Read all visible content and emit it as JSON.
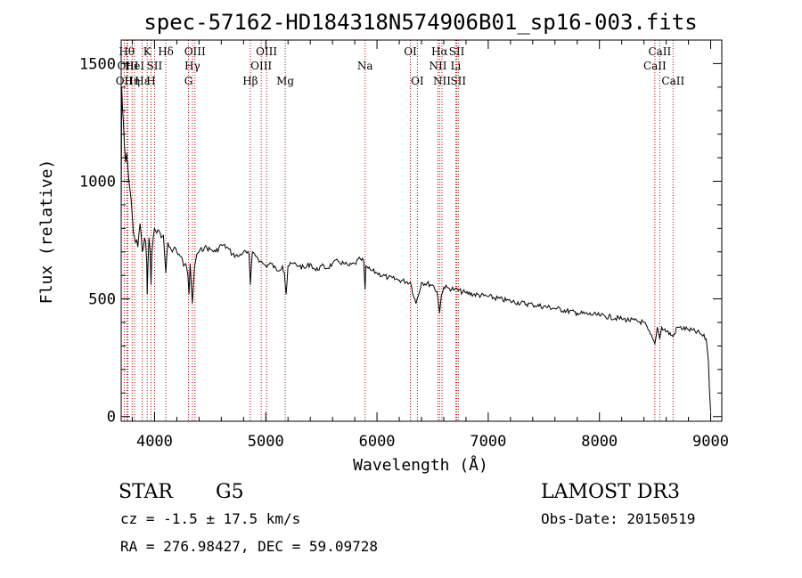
{
  "chart_data": {
    "type": "line",
    "title": "spec-57162-HD184318N574906B01_sp16-003.fits",
    "xlabel": "Wavelength (Å)",
    "ylabel": "Flux (relative)",
    "xlim": [
      3700,
      9100
    ],
    "ylim": [
      -20,
      1600
    ],
    "xticks": [
      4000,
      5000,
      6000,
      7000,
      8000,
      9000
    ],
    "xtick_labels": [
      "4000",
      "5000",
      "6000",
      "7000",
      "8000",
      "9000"
    ],
    "yticks": [
      0,
      500,
      1000,
      1500
    ],
    "ytick_labels": [
      "0",
      "500",
      "1000",
      "1500"
    ],
    "series": [
      {
        "name": "spectrum",
        "x": [
          3700,
          3705,
          3712,
          3720,
          3730,
          3740,
          3750,
          3760,
          3770,
          3780,
          3790,
          3800,
          3810,
          3820,
          3830,
          3840,
          3850,
          3860,
          3870,
          3880,
          3890,
          3900,
          3910,
          3920,
          3930,
          3934,
          3940,
          3950,
          3960,
          3968,
          3975,
          3990,
          4000,
          4020,
          4040,
          4060,
          4080,
          4101,
          4120,
          4140,
          4160,
          4180,
          4200,
          4220,
          4240,
          4260,
          4280,
          4300,
          4310,
          4320,
          4340,
          4360,
          4380,
          4400,
          4450,
          4500,
          4550,
          4600,
          4650,
          4700,
          4750,
          4800,
          4850,
          4861,
          4880,
          4900,
          4920,
          4950,
          5000,
          5050,
          5100,
          5150,
          5167,
          5183,
          5200,
          5250,
          5300,
          5350,
          5400,
          5450,
          5500,
          5550,
          5600,
          5650,
          5700,
          5750,
          5800,
          5850,
          5880,
          5893,
          5900,
          5920,
          5950,
          6000,
          6100,
          6200,
          6300,
          6350,
          6400,
          6500,
          6540,
          6563,
          6580,
          6600,
          6650,
          6700,
          6800,
          7000,
          7200,
          7400,
          7600,
          7800,
          8000,
          8200,
          8400,
          8498,
          8520,
          8542,
          8560,
          8662,
          8700,
          8800,
          8900,
          8960,
          8980,
          8990,
          9000
        ],
        "y": [
          820,
          1400,
          1310,
          1250,
          1150,
          1080,
          1120,
          1060,
          1000,
          960,
          920,
          850,
          780,
          760,
          740,
          750,
          720,
          780,
          820,
          770,
          700,
          720,
          760,
          740,
          650,
          520,
          640,
          760,
          700,
          560,
          690,
          770,
          800,
          780,
          790,
          760,
          770,
          610,
          740,
          720,
          700,
          720,
          700,
          690,
          680,
          640,
          650,
          600,
          520,
          650,
          480,
          640,
          690,
          700,
          720,
          710,
          700,
          730,
          720,
          690,
          680,
          700,
          690,
          560,
          700,
          690,
          680,
          660,
          640,
          650,
          620,
          640,
          610,
          520,
          640,
          650,
          640,
          630,
          650,
          620,
          640,
          630,
          650,
          660,
          650,
          640,
          650,
          670,
          660,
          540,
          640,
          630,
          620,
          610,
          590,
          580,
          570,
          480,
          570,
          560,
          530,
          440,
          520,
          550,
          545,
          540,
          525,
          510,
          490,
          475,
          460,
          440,
          430,
          415,
          400,
          310,
          380,
          330,
          380,
          340,
          380,
          370,
          355,
          330,
          230,
          100,
          20
        ]
      }
    ],
    "line_markers": [
      {
        "wavelength": 3727,
        "label": "OII",
        "row": 3
      },
      {
        "wavelength": 3750,
        "label": "Hθ",
        "row": 1
      },
      {
        "wavelength": 3760,
        "label": "OIII",
        "row": 2
      },
      {
        "wavelength": 3798,
        "label": "Hη",
        "row": 3
      },
      {
        "wavelength": 3820,
        "label": "HeI",
        "row": 2
      },
      {
        "wavelength": 3889,
        "label": "Hε",
        "row": 3
      },
      {
        "wavelength": 3934,
        "label": "K",
        "row": 1
      },
      {
        "wavelength": 3968,
        "label": "H",
        "row": 3
      },
      {
        "wavelength": 4000,
        "label": "SII",
        "row": 2
      },
      {
        "wavelength": 4101,
        "label": "Hδ",
        "row": 1
      },
      {
        "wavelength": 4305,
        "label": "G",
        "row": 3
      },
      {
        "wavelength": 4340,
        "label": "Hγ",
        "row": 2
      },
      {
        "wavelength": 4363,
        "label": "OIII",
        "row": 1
      },
      {
        "wavelength": 4861,
        "label": "Hβ",
        "row": 3
      },
      {
        "wavelength": 4959,
        "label": "OIII",
        "row": 2
      },
      {
        "wavelength": 5007,
        "label": "OIII",
        "row": 1
      },
      {
        "wavelength": 5175,
        "label": "Mg",
        "row": 3
      },
      {
        "wavelength": 5893,
        "label": "Na",
        "row": 2
      },
      {
        "wavelength": 6300,
        "label": "OI",
        "row": 1
      },
      {
        "wavelength": 6363,
        "label": "OI",
        "row": 3
      },
      {
        "wavelength": 6548,
        "label": "NII",
        "row": 2
      },
      {
        "wavelength": 6563,
        "label": "Hα",
        "row": 1
      },
      {
        "wavelength": 6584,
        "label": "NII",
        "row": 3
      },
      {
        "wavelength": 6708,
        "label": "Li",
        "row": 2
      },
      {
        "wavelength": 6717,
        "label": "SII",
        "row": 1
      },
      {
        "wavelength": 6731,
        "label": "SII",
        "row": 3
      },
      {
        "wavelength": 8498,
        "label": "CaII",
        "row": 2
      },
      {
        "wavelength": 8542,
        "label": "CaII",
        "row": 1
      },
      {
        "wavelength": 8662,
        "label": "CaII",
        "row": 3
      }
    ],
    "line_color": "#000000",
    "marker_color": "#cc0000"
  },
  "footer": {
    "object_class": "STAR",
    "subclass": "G5",
    "redshift": "cz = -1.5 ± 17.5 km/s",
    "coords": "RA = 276.98427, DEC =  59.09728",
    "survey": "LAMOST DR3",
    "obs_date": "Obs-Date: 20150519"
  }
}
